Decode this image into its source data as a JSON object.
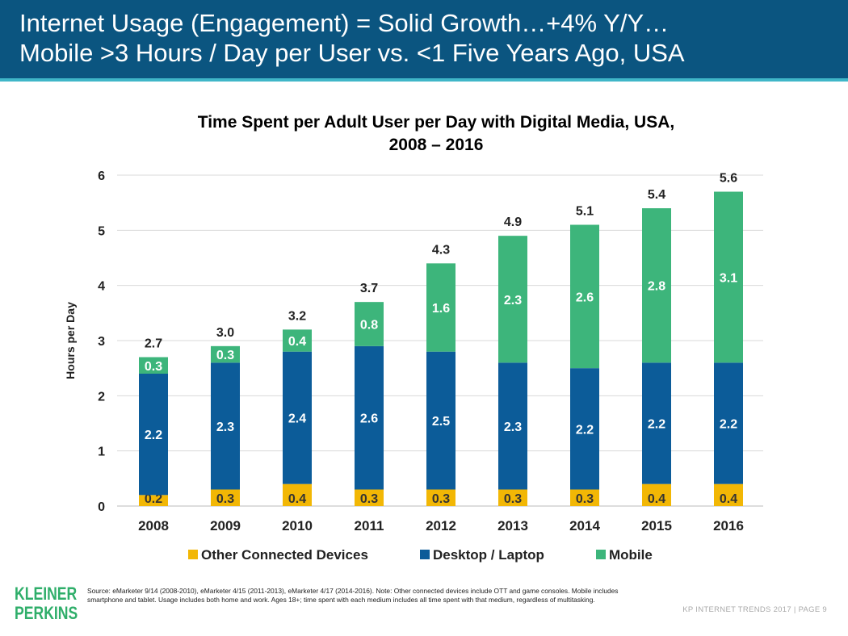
{
  "header": {
    "line1": "Internet Usage (Engagement) = Solid Growth…+4% Y/Y…",
    "line2": "Mobile >3 Hours / Day per User vs. <1 Five Years Ago, USA"
  },
  "chart_data": {
    "type": "bar",
    "stacked": true,
    "title_line1": "Time Spent per Adult User per Day with Digital Media, USA,",
    "title_line2": "2008 – 2016",
    "xlabel": "",
    "ylabel": "Hours per Day",
    "ylim": [
      0,
      6
    ],
    "yticks": [
      "0",
      "1",
      "2",
      "3",
      "4",
      "5",
      "6"
    ],
    "grid": true,
    "legend_position": "bottom",
    "categories": [
      "2008",
      "2009",
      "2010",
      "2011",
      "2012",
      "2013",
      "2014",
      "2015",
      "2016"
    ],
    "series": [
      {
        "name": "Other Connected Devices",
        "color": "#f2b705",
        "values": [
          0.2,
          0.3,
          0.4,
          0.3,
          0.3,
          0.3,
          0.3,
          0.4,
          0.4
        ]
      },
      {
        "name": "Desktop / Laptop",
        "color": "#0c5c99",
        "values": [
          2.2,
          2.3,
          2.4,
          2.6,
          2.5,
          2.3,
          2.2,
          2.2,
          2.2
        ]
      },
      {
        "name": "Mobile",
        "color": "#3db57b",
        "values": [
          0.3,
          0.3,
          0.4,
          0.8,
          1.6,
          2.3,
          2.6,
          2.8,
          3.1
        ]
      }
    ],
    "totals": [
      2.7,
      3.0,
      3.2,
      3.7,
      4.3,
      4.9,
      5.1,
      5.4,
      5.6
    ]
  },
  "footer": {
    "logo_line1": "KLEINER",
    "logo_line2": "PERKINS",
    "source": "Source: eMarketer 9/14 (2008-2010), eMarketer 4/15 (2011-2013), eMarketer 4/17 (2014-2016). Note: Other connected devices include OTT and game consoles. Mobile includes smartphone and tablet. Usage includes both home and work. Ages 18+; time spent with each medium includes all time spent with that medium, regardless of multitasking.",
    "page_info": "KP INTERNET TRENDS 2017  |  PAGE 9"
  }
}
